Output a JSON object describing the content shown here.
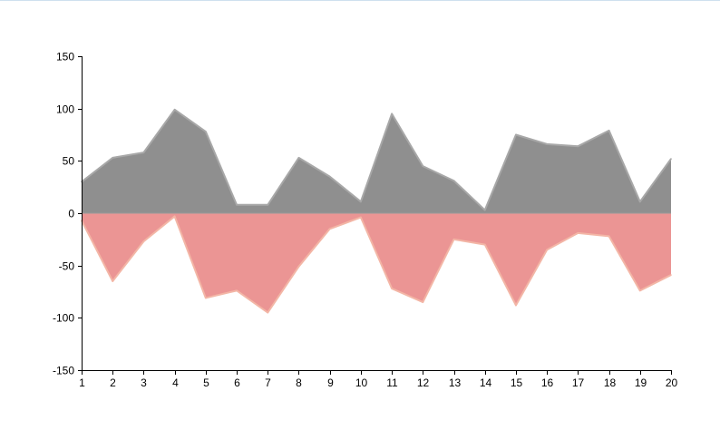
{
  "chart_data": {
    "type": "area",
    "x": [
      1,
      2,
      3,
      4,
      5,
      6,
      7,
      8,
      9,
      10,
      11,
      12,
      13,
      14,
      15,
      16,
      17,
      18,
      19,
      20
    ],
    "series": [
      {
        "color": "#8f8f8f",
        "stroke": "#a8a8a8",
        "values": [
          30,
          53,
          58,
          99,
          78,
          8,
          8,
          53,
          35,
          11,
          95,
          45,
          31,
          3,
          75,
          66,
          64,
          79,
          11,
          52
        ]
      },
      {
        "color": "#eb9594",
        "stroke": "#f3b6a6",
        "values": [
          -7,
          -65,
          -27,
          -3,
          -81,
          -74,
          -95,
          -51,
          -15,
          -4,
          -72,
          -85,
          -25,
          -30,
          -88,
          -35,
          -19,
          -22,
          -74,
          -59
        ]
      }
    ],
    "xlim": [
      1,
      20
    ],
    "ylim": [
      -150,
      150
    ],
    "yticks": [
      -150,
      -100,
      -50,
      0,
      50,
      100,
      150
    ],
    "xticks": [
      1,
      2,
      3,
      4,
      5,
      6,
      7,
      8,
      9,
      10,
      11,
      12,
      13,
      14,
      15,
      16,
      17,
      18,
      19,
      20
    ],
    "grid": false,
    "title": "",
    "xlabel": "",
    "ylabel": ""
  }
}
